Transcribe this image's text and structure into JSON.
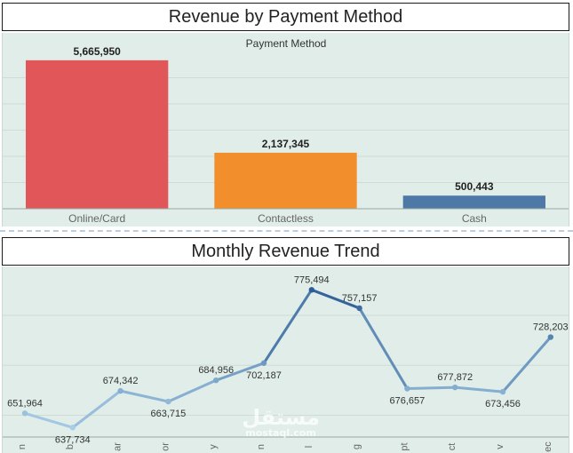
{
  "bar_chart": {
    "title": "Revenue by Payment Method",
    "header": "Payment Method"
  },
  "line_chart": {
    "title": "Monthly Revenue Trend"
  },
  "watermark": {
    "arabic": "مستقل",
    "latin": "mostaql.com"
  },
  "chart_data": [
    {
      "type": "bar",
      "title": "Revenue by Payment Method",
      "subtitle": "Payment Method",
      "categories": [
        "Online/Card",
        "Contactless",
        "Cash"
      ],
      "values": [
        5665950,
        2137345,
        500443
      ],
      "value_labels": [
        "5,665,950",
        "2,137,345",
        "500,443"
      ],
      "colors": [
        "#e15759",
        "#f28e2b",
        "#4e79a7"
      ],
      "ylim": [
        0,
        6000000
      ],
      "grid": true,
      "legend": "none"
    },
    {
      "type": "line",
      "title": "Monthly Revenue Trend",
      "x": [
        "n",
        "b",
        "ar",
        "or",
        "y",
        "n",
        "l",
        "g",
        "pt",
        "ct",
        "v",
        "ec"
      ],
      "values": [
        651964,
        637734,
        674342,
        663715,
        684956,
        702187,
        775494,
        757157,
        676657,
        677872,
        673456,
        728203
      ],
      "value_labels": [
        "651,964",
        "637,734",
        "674,342",
        "663,715",
        "684,956",
        "702,187",
        "775,494",
        "757,157",
        "676,657",
        "677,872",
        "673,456",
        "728,203"
      ],
      "color_low": "#a8cde6",
      "color_high": "#2c5d96",
      "ylim": [
        630000,
        790000
      ],
      "grid": true,
      "legend": "none"
    }
  ]
}
